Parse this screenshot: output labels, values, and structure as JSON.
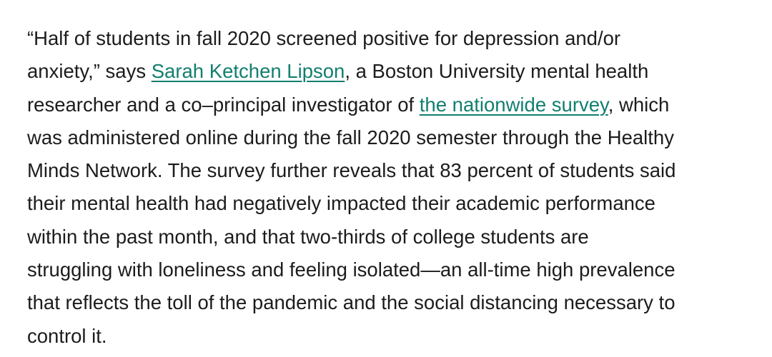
{
  "article": {
    "paragraph": {
      "line1": "“Half of students in fall 2020 screened positive for depression and/or",
      "line2_before": "anxiety,” says ",
      "link_person": "Sarah Ketchen Lipson",
      "line2_after": ", a Boston University mental health",
      "line3_before": "researcher and a co–principal investigator of ",
      "link_survey": "the nationwide survey",
      "line3_after": ", which",
      "line4": "was administered online during the fall 2020 semester through the Healthy",
      "line5": "Minds Network. The survey further reveals that 83 percent of students said",
      "line6": "their mental health had negatively impacted their academic performance",
      "line7": "within the past month, and that two-thirds of college students are",
      "line8": "struggling with loneliness and feeling isolated—an all-time high prevalence",
      "line9": "that reflects the toll of the pandemic and the social distancing necessary to",
      "line10": "control it."
    },
    "colors": {
      "text": "#1c1c1c",
      "link": "#127f6e",
      "background": "#ffffff"
    }
  }
}
